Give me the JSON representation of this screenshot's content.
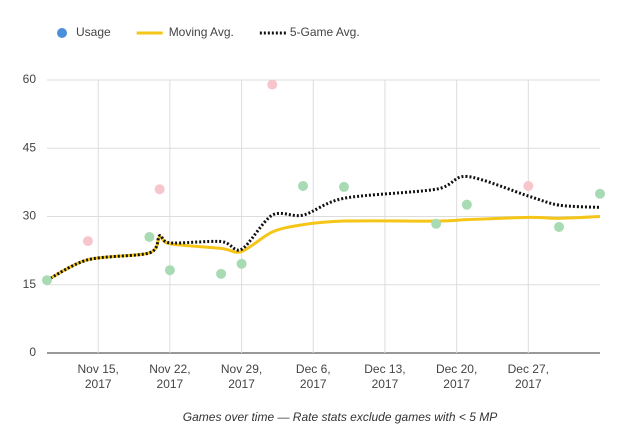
{
  "chart_data": {
    "type": "scatter_line",
    "x_label": "Games over time — Rate stats exclude games with < 5 MP",
    "x": [
      "2017-11-10",
      "2017-11-14",
      "2017-11-20",
      "2017-11-21",
      "2017-11-22",
      "2017-11-27",
      "2017-11-29",
      "2017-12-02",
      "2017-12-05",
      "2017-12-09",
      "2017-12-18",
      "2017-12-21",
      "2017-12-27",
      "2017-12-30",
      "2018-01-03"
    ],
    "series": [
      {
        "name": "Usage",
        "color": "#4a90d9",
        "kind": "points",
        "point_colors": [
          "#a8dbb3",
          "#f6c6cc",
          "#a8dbb3",
          "#f6c6cc",
          "#a8dbb3",
          "#a8dbb3",
          "#a8dbb3",
          "#f6c6cc",
          "#a8dbb3",
          "#a8dbb3",
          "#a8dbb3",
          "#a8dbb3",
          "#f6c6cc",
          "#a8dbb3",
          "#a8dbb3"
        ],
        "values": [
          16,
          24.6,
          25.5,
          36,
          18.2,
          17.4,
          19.6,
          59,
          36.7,
          36.5,
          28.4,
          32.6,
          36.7,
          27.7,
          35
        ]
      },
      {
        "name": "Moving Avg.",
        "color": "#f5c518",
        "kind": "line",
        "values": [
          16,
          20.5,
          22,
          25.5,
          24,
          23,
          22.3,
          26.6,
          28.2,
          29,
          29,
          29.3,
          29.8,
          29.6,
          30
        ]
      },
      {
        "name": "5-Game Avg.",
        "color": "#111111",
        "kind": "dotted",
        "values": [
          16,
          20.5,
          22,
          25.8,
          24.2,
          24.5,
          22.8,
          30.3,
          30.3,
          34,
          36,
          38.8,
          34.5,
          32.5,
          32
        ]
      }
    ],
    "xlim": [
      "2017-11-10",
      "2018-01-03"
    ],
    "xticks": [
      {
        "value": "2017-11-15",
        "label": "Nov 15, 2017"
      },
      {
        "value": "2017-11-22",
        "label": "Nov 22, 2017"
      },
      {
        "value": "2017-11-29",
        "label": "Nov 29, 2017"
      },
      {
        "value": "2017-12-06",
        "label": "Dec 6, 2017"
      },
      {
        "value": "2017-12-13",
        "label": "Dec 13, 2017"
      },
      {
        "value": "2017-12-20",
        "label": "Dec 20, 2017"
      },
      {
        "value": "2017-12-27",
        "label": "Dec 27, 2017"
      }
    ],
    "ylim": [
      0,
      60
    ],
    "yticks": [
      0,
      15,
      30,
      45,
      60
    ],
    "grid": true,
    "legend": "top"
  }
}
